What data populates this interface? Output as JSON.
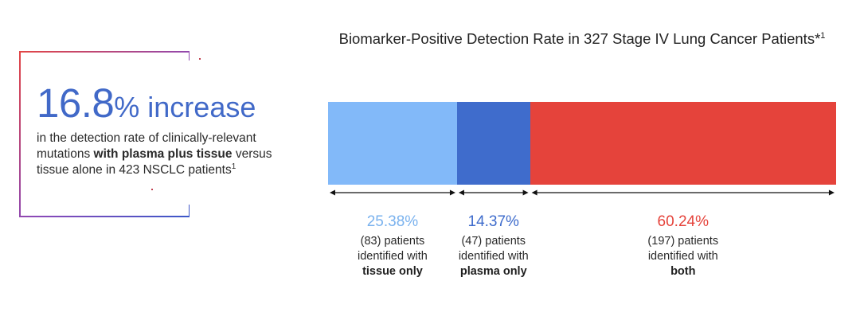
{
  "callout": {
    "stat": "16.8",
    "stat_suffix": "%",
    "stat_word": " increase",
    "text_1": "in the detection rate of clinically-relevant mutations ",
    "text_bold": "with plasma plus tissue",
    "text_2": " versus tissue alone in 423 NSCLC patients",
    "text_ref": "1"
  },
  "chart_data": {
    "type": "bar",
    "orientation": "horizontal-stacked",
    "title": "Biomarker-Positive Detection Rate in 327 Stage IV Lung Cancer Patients*",
    "title_ref": "1",
    "xlim": [
      0,
      100
    ],
    "segments": [
      {
        "value": 25.38,
        "pct_label": "25.38%",
        "count_label": "(83) patients",
        "line2": "identified with",
        "bold": "tissue only",
        "color": "#82b9f9"
      },
      {
        "value": 14.37,
        "pct_label": "14.37%",
        "count_label": "(47) patients",
        "line2": "identified with",
        "bold": "plasma only",
        "color": "#3f6ccc"
      },
      {
        "value": 60.24,
        "pct_label": "60.24%",
        "count_label": "(197) patients",
        "line2": "identified with",
        "bold": "both",
        "color": "#e5433b"
      }
    ],
    "label_colors": [
      "#7ab2ee",
      "#3f6ccc",
      "#e5433b"
    ]
  }
}
